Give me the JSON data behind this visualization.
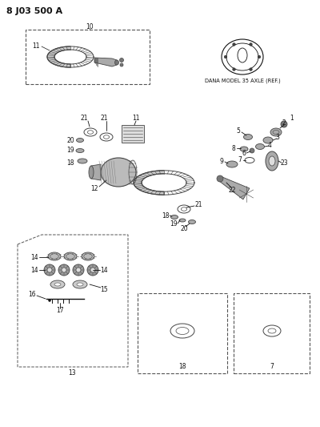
{
  "title_code": "8 J03 500 A",
  "dana_label": "DANA MODEL 35 AXLE (REF.)",
  "bg_color": "#ffffff",
  "fg_color": "#111111",
  "fig_width": 4.0,
  "fig_height": 5.33,
  "dpi": 100
}
